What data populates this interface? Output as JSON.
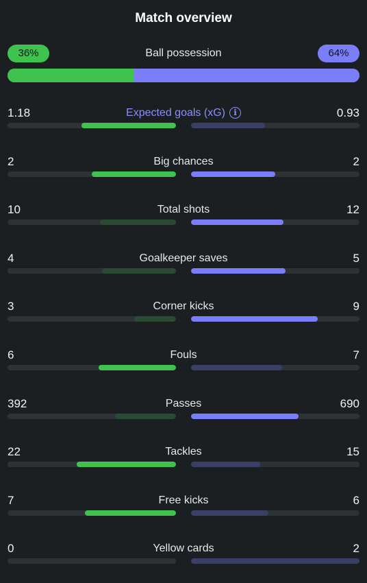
{
  "header": {
    "title": "Match overview"
  },
  "possession": {
    "label": "Ball possession",
    "home": "36%",
    "away": "64%",
    "home_fraction": 0.36
  },
  "colors": {
    "home_strong": "#3fc24e",
    "home_weak": "#2b4a33",
    "away_strong": "#7b7ef9",
    "away_weak": "#3a3f66",
    "accent": "#8b8efb"
  },
  "stats": [
    {
      "label": "Expected goals (xG)",
      "home": "1.18",
      "away": "0.93",
      "home_fill": 0.56,
      "away_fill": 0.44,
      "home_strong": true,
      "away_strong": false,
      "info": true
    },
    {
      "label": "Big chances",
      "home": "2",
      "away": "2",
      "home_fill": 0.5,
      "away_fill": 0.5,
      "home_strong": true,
      "away_strong": true
    },
    {
      "label": "Total shots",
      "home": "10",
      "away": "12",
      "home_fill": 0.45,
      "away_fill": 0.55,
      "home_strong": false,
      "away_strong": true
    },
    {
      "label": "Goalkeeper saves",
      "home": "4",
      "away": "5",
      "home_fill": 0.44,
      "away_fill": 0.56,
      "home_strong": false,
      "away_strong": true
    },
    {
      "label": "Corner kicks",
      "home": "3",
      "away": "9",
      "home_fill": 0.25,
      "away_fill": 0.75,
      "home_strong": false,
      "away_strong": true
    },
    {
      "label": "Fouls",
      "home": "6",
      "away": "7",
      "home_fill": 0.46,
      "away_fill": 0.54,
      "home_strong": true,
      "away_strong": false
    },
    {
      "label": "Passes",
      "home": "392",
      "away": "690",
      "home_fill": 0.36,
      "away_fill": 0.64,
      "home_strong": false,
      "away_strong": true
    },
    {
      "label": "Tackles",
      "home": "22",
      "away": "15",
      "home_fill": 0.59,
      "away_fill": 0.41,
      "home_strong": true,
      "away_strong": false
    },
    {
      "label": "Free kicks",
      "home": "7",
      "away": "6",
      "home_fill": 0.54,
      "away_fill": 0.46,
      "home_strong": true,
      "away_strong": false
    },
    {
      "label": "Yellow cards",
      "home": "0",
      "away": "2",
      "home_fill": 0.0,
      "away_fill": 1.0,
      "home_strong": false,
      "away_strong": false
    }
  ]
}
